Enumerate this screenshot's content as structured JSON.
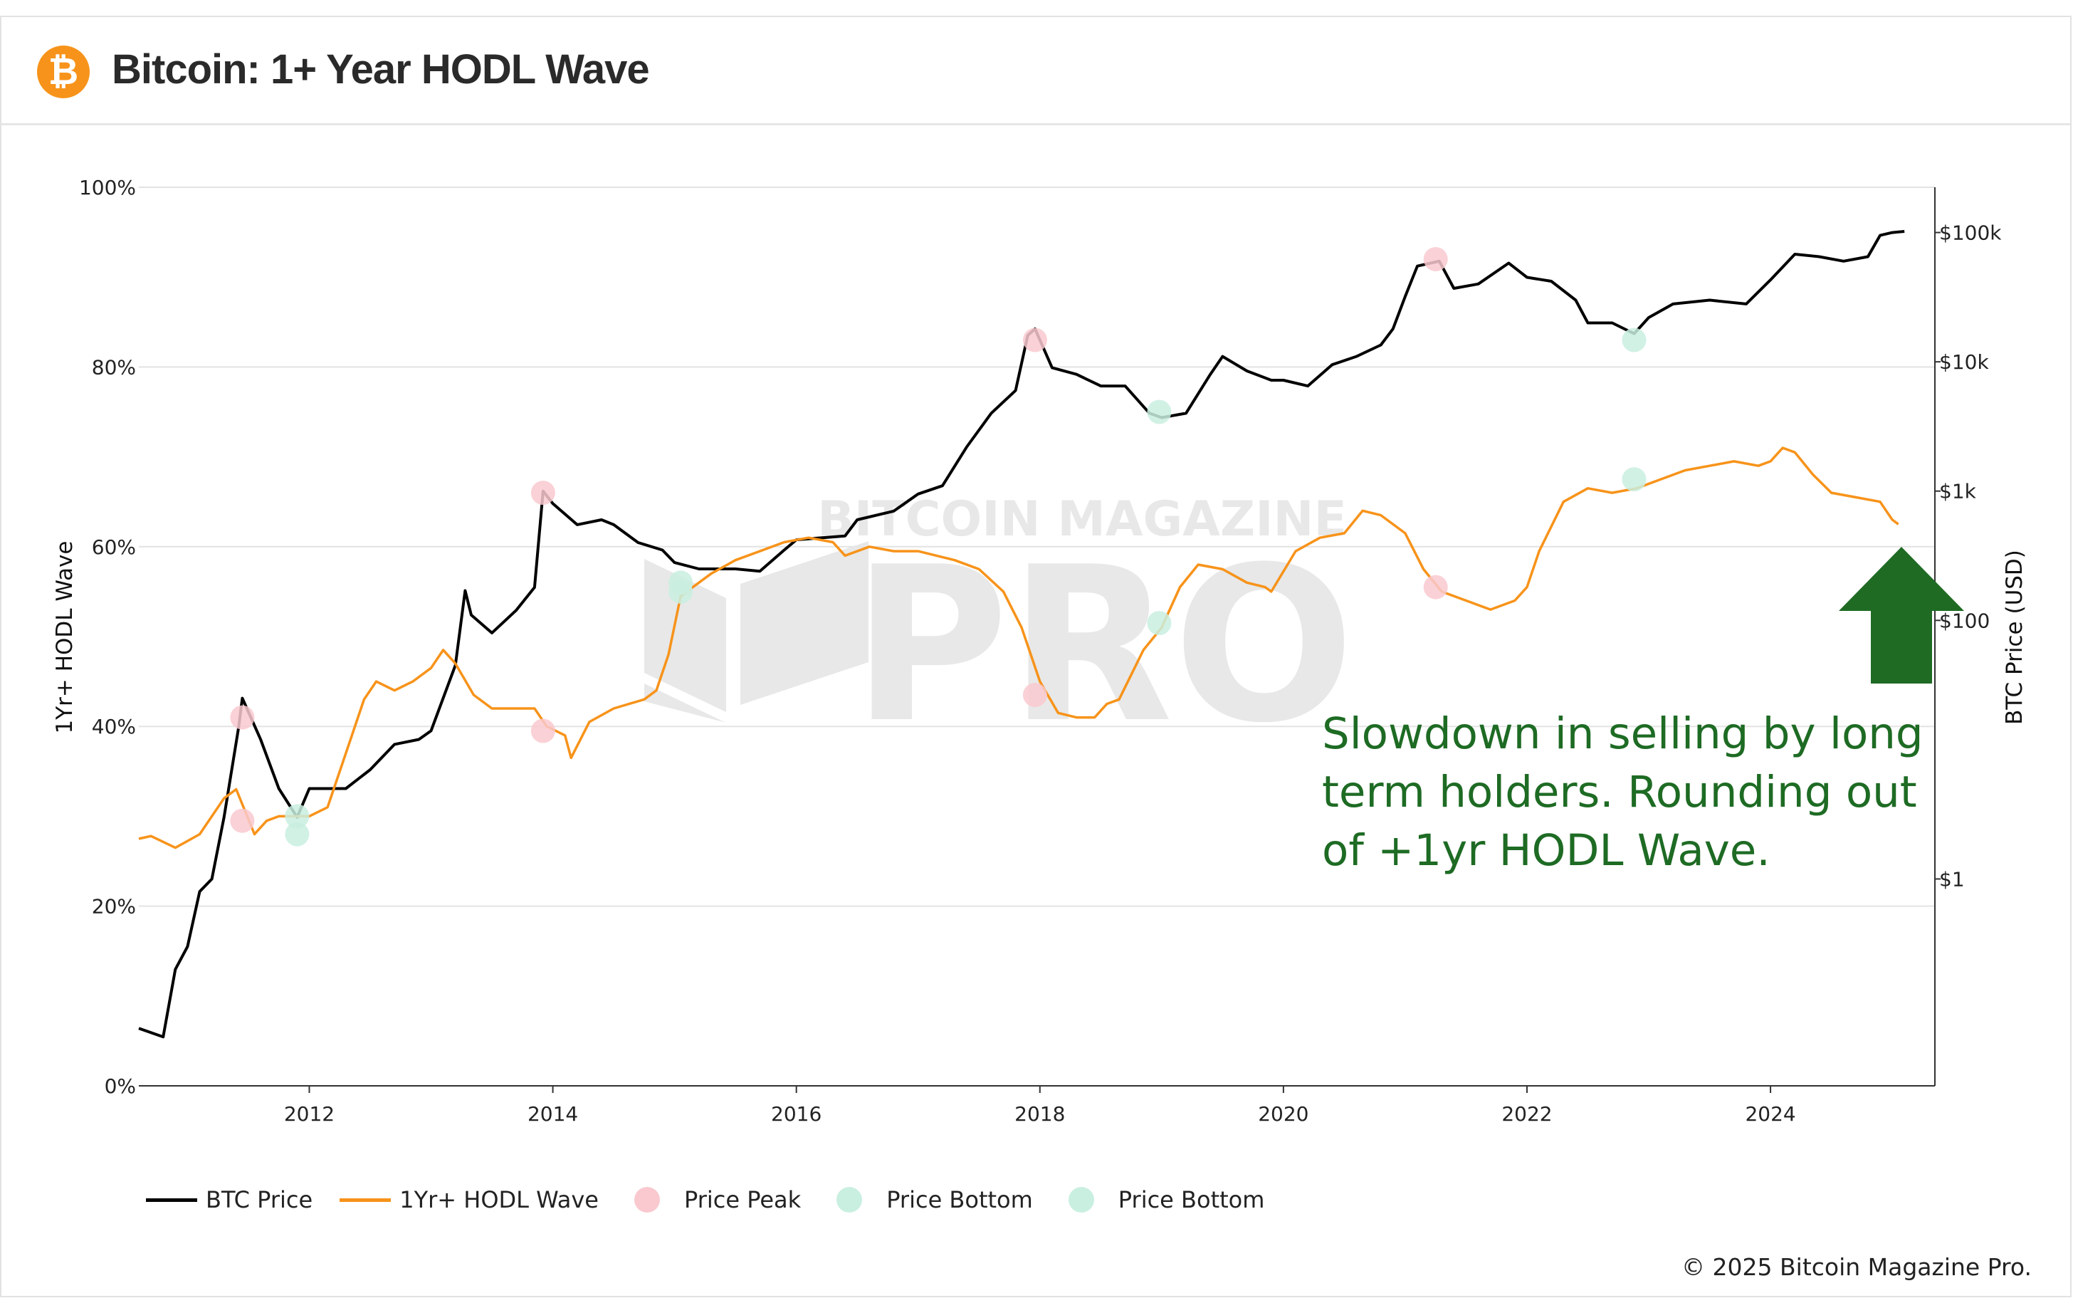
{
  "header": {
    "logo_glyph": "₿",
    "title": "Bitcoin: 1+ Year HODL Wave"
  },
  "annotation": {
    "line1": "Slowdown in selling by long",
    "line2": "term holders. Rounding out",
    "line3": "of +1yr HODL Wave."
  },
  "legend": {
    "btc_price": "BTC Price",
    "hodl_wave": "1Yr+ HODL Wave",
    "price_peak": "Price Peak",
    "price_bottom_1": "Price Bottom",
    "price_bottom_2": "Price Bottom"
  },
  "watermark": {
    "line1": "BITCOIN MAGAZINE",
    "line2": "PRO"
  },
  "copyright": "© 2025 Bitcoin Magazine Pro.",
  "colors": {
    "btc_price": "#000000",
    "hodl_wave": "#f7931a",
    "price_peak": "#f9c9cf",
    "price_bottom": "#c9efe1",
    "annotation": "#1e6b24",
    "arrow": "#1f6b24",
    "grid": "#e3e3e3"
  },
  "chart_data": {
    "type": "line",
    "title": "Bitcoin: 1+ Year HODL Wave",
    "xlim": [
      2010.6,
      2025.35
    ],
    "x_ticks": [
      2012,
      2014,
      2016,
      2018,
      2020,
      2022,
      2024
    ],
    "x_tick_labels": [
      "2012",
      "2014",
      "2016",
      "2018",
      "2020",
      "2022",
      "2024"
    ],
    "y_left": {
      "label": "1Yr+ HODL Wave",
      "range": [
        0,
        100
      ],
      "ticks": [
        0,
        20,
        40,
        60,
        80,
        100
      ],
      "tick_labels": [
        "0%",
        "20%",
        "40%",
        "60%",
        "80%",
        "100%"
      ]
    },
    "y_right": {
      "label": "BTC Price (USD)",
      "scale": "log",
      "range_log10": [
        -1.6,
        5.35
      ],
      "ticks": [
        1,
        100,
        1000,
        10000,
        100000
      ],
      "tick_labels": [
        "$1",
        "$100",
        "$1k",
        "$10k",
        "$100k"
      ]
    },
    "series": [
      {
        "name": "BTC Price",
        "axis": "right",
        "x": [
          2010.6,
          2010.8,
          2010.9,
          2011.0,
          2011.1,
          2011.2,
          2011.3,
          2011.42,
          2011.45,
          2011.6,
          2011.75,
          2011.9,
          2012.0,
          2012.1,
          2012.3,
          2012.5,
          2012.7,
          2012.9,
          2013.0,
          2013.2,
          2013.28,
          2013.33,
          2013.5,
          2013.7,
          2013.85,
          2013.92,
          2014.0,
          2014.2,
          2014.4,
          2014.5,
          2014.7,
          2014.9,
          2015.0,
          2015.2,
          2015.5,
          2015.7,
          2015.9,
          2016.0,
          2016.4,
          2016.5,
          2016.8,
          2017.0,
          2017.2,
          2017.4,
          2017.6,
          2017.8,
          2017.9,
          2017.96,
          2018.1,
          2018.3,
          2018.5,
          2018.7,
          2018.9,
          2019.0,
          2019.2,
          2019.4,
          2019.5,
          2019.7,
          2019.9,
          2020.0,
          2020.2,
          2020.4,
          2020.6,
          2020.8,
          2020.9,
          2021.0,
          2021.1,
          2021.28,
          2021.4,
          2021.6,
          2021.85,
          2022.0,
          2022.2,
          2022.4,
          2022.5,
          2022.7,
          2022.88,
          2023.0,
          2023.2,
          2023.5,
          2023.8,
          2024.0,
          2024.2,
          2024.4,
          2024.6,
          2024.8,
          2024.9,
          2025.0,
          2025.1
        ],
        "y": [
          0.07,
          0.06,
          0.2,
          0.3,
          0.8,
          1.0,
          3.0,
          15.0,
          25.0,
          12.0,
          5.0,
          3.0,
          5.0,
          5.0,
          5.0,
          7.0,
          11.0,
          12.0,
          14.0,
          45.0,
          170.0,
          110.0,
          80.0,
          120.0,
          180.0,
          1000.0,
          800.0,
          550.0,
          600.0,
          550.0,
          400.0,
          350.0,
          280.0,
          250.0,
          250.0,
          240.0,
          350.0,
          420.0,
          450.0,
          600.0,
          700.0,
          950.0,
          1100.0,
          2200.0,
          4000.0,
          6000.0,
          16000.0,
          18000.0,
          9000.0,
          8000.0,
          6500.0,
          6500.0,
          4000.0,
          3700.0,
          4000.0,
          8000.0,
          11000.0,
          8500.0,
          7200.0,
          7200.0,
          6500.0,
          9500.0,
          11000.0,
          13500.0,
          18000.0,
          32000.0,
          55000.0,
          60000.0,
          37000.0,
          40000.0,
          58000.0,
          45000.0,
          42000.0,
          30000.0,
          20000.0,
          20000.0,
          16500.0,
          22000.0,
          28000.0,
          30000.0,
          28000.0,
          43000.0,
          68000.0,
          65000.0,
          60000.0,
          65000.0,
          95000.0,
          100000.0,
          102000.0
        ]
      },
      {
        "name": "1Yr+ HODL Wave",
        "axis": "left",
        "x": [
          2010.6,
          2010.7,
          2010.9,
          2011.1,
          2011.3,
          2011.4,
          2011.55,
          2011.65,
          2011.75,
          2012.0,
          2012.15,
          2012.3,
          2012.45,
          2012.55,
          2012.7,
          2012.85,
          2013.0,
          2013.1,
          2013.2,
          2013.35,
          2013.5,
          2013.7,
          2013.85,
          2013.95,
          2014.1,
          2014.15,
          2014.3,
          2014.5,
          2014.75,
          2014.85,
          2014.95,
          2015.05,
          2015.3,
          2015.5,
          2015.7,
          2015.9,
          2016.1,
          2016.3,
          2016.4,
          2016.6,
          2016.8,
          2017.0,
          2017.3,
          2017.5,
          2017.7,
          2017.85,
          2018.0,
          2018.15,
          2018.3,
          2018.45,
          2018.55,
          2018.65,
          2018.85,
          2019.0,
          2019.15,
          2019.3,
          2019.5,
          2019.7,
          2019.85,
          2019.9,
          2020.1,
          2020.3,
          2020.5,
          2020.65,
          2020.8,
          2021.0,
          2021.15,
          2021.3,
          2021.5,
          2021.7,
          2021.9,
          2022.0,
          2022.1,
          2022.3,
          2022.5,
          2022.7,
          2022.9,
          2023.1,
          2023.3,
          2023.5,
          2023.7,
          2023.9,
          2024.0,
          2024.1,
          2024.2,
          2024.35,
          2024.5,
          2024.7,
          2024.9,
          2025.0,
          2025.05
        ],
        "y": [
          27.5,
          27.8,
          26.5,
          28.0,
          32.0,
          33.0,
          28.0,
          29.5,
          30.0,
          30.0,
          31.0,
          37.0,
          43.0,
          45.0,
          44.0,
          45.0,
          46.5,
          48.5,
          47.0,
          43.5,
          42.0,
          42.0,
          42.0,
          40.0,
          39.0,
          36.5,
          40.5,
          42.0,
          43.0,
          44.0,
          48.0,
          54.5,
          57.0,
          58.5,
          59.5,
          60.5,
          61.0,
          60.5,
          59.0,
          60.0,
          59.5,
          59.5,
          58.5,
          57.5,
          55.0,
          51.0,
          45.0,
          41.5,
          41.0,
          41.0,
          42.5,
          43.0,
          48.5,
          51.0,
          55.5,
          58.0,
          57.5,
          56.0,
          55.5,
          55.0,
          59.5,
          61.0,
          61.5,
          64.0,
          63.5,
          61.5,
          57.5,
          55.0,
          54.0,
          53.0,
          54.0,
          55.5,
          59.5,
          65.0,
          66.5,
          66.0,
          66.5,
          67.5,
          68.5,
          69.0,
          69.5,
          69.0,
          69.5,
          71.0,
          70.5,
          68.0,
          66.0,
          65.5,
          65.0,
          63.0,
          62.5
        ]
      }
    ],
    "price_peaks": [
      {
        "x": 2011.45,
        "y": 41
      },
      {
        "x": 2011.45,
        "y": 29.5
      },
      {
        "x": 2013.92,
        "y": 66
      },
      {
        "x": 2013.92,
        "y": 39.5
      },
      {
        "x": 2017.96,
        "y": 83
      },
      {
        "x": 2017.96,
        "y": 43.5
      },
      {
        "x": 2021.25,
        "y": 92
      },
      {
        "x": 2021.25,
        "y": 55.5
      }
    ],
    "price_bottoms": [
      {
        "x": 2011.9,
        "y": 28
      },
      {
        "x": 2011.9,
        "y": 30
      },
      {
        "x": 2015.05,
        "y": 55
      },
      {
        "x": 2015.05,
        "y": 56
      },
      {
        "x": 2018.98,
        "y": 75
      },
      {
        "x": 2018.98,
        "y": 51.5
      },
      {
        "x": 2022.88,
        "y": 83
      },
      {
        "x": 2022.88,
        "y": 67.5
      }
    ]
  }
}
